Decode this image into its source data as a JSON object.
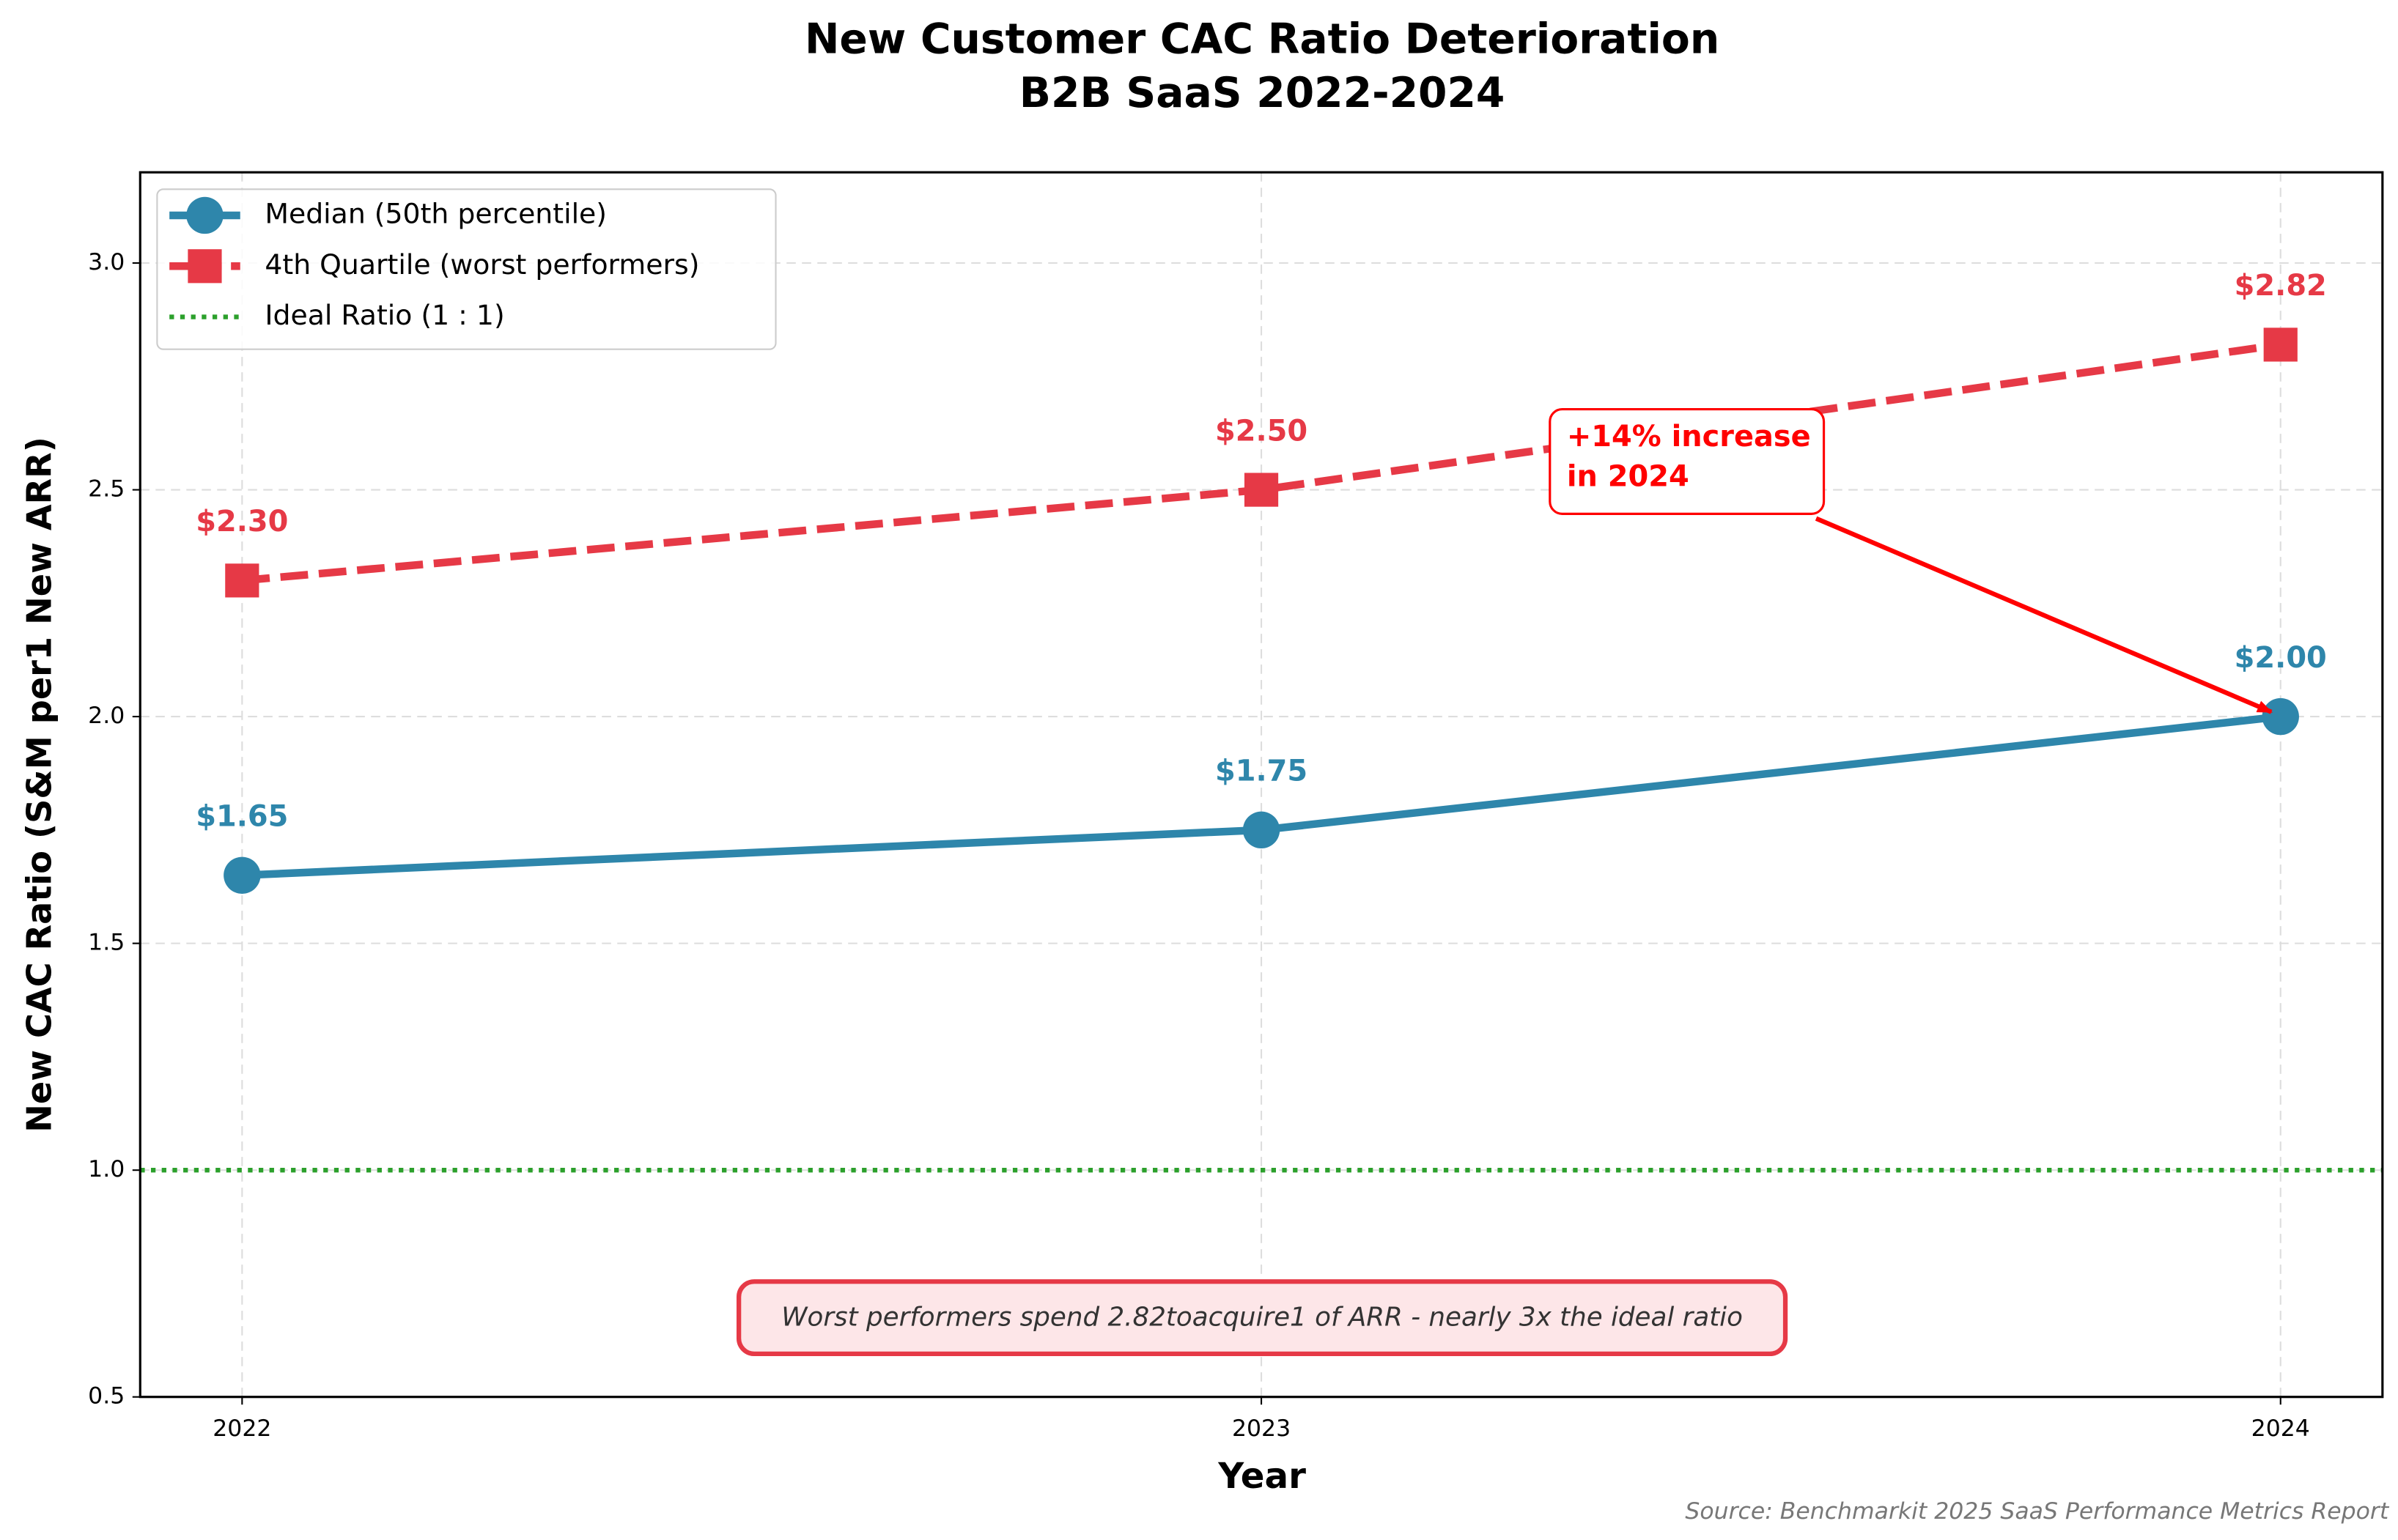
{
  "chart_data": {
    "type": "line",
    "title": [
      "New Customer CAC Ratio Deterioration",
      "B2B SaaS 2022-2024"
    ],
    "xlabel": "Year",
    "ylabel": "New CAC Ratio (S&M per1 New ARR)",
    "x": [
      2022,
      2023,
      2024
    ],
    "xlim": [
      2021.9,
      2024.1
    ],
    "xticks": [
      2022,
      2023,
      2024
    ],
    "ylim": [
      0.5,
      3.2
    ],
    "yticks": [
      0.5,
      1.0,
      1.5,
      2.0,
      2.5,
      3.0
    ],
    "ytick_labels": [
      "0.5",
      "1.0",
      "1.5",
      "2.0",
      "2.5",
      "3.0"
    ],
    "grid": true,
    "legend": "upper left",
    "series": [
      {
        "name": "Median (50th percentile)",
        "color": "#2e86ab",
        "marker": "circle",
        "dash": false,
        "values": [
          1.65,
          1.75,
          2.0
        ],
        "value_labels": [
          "$1.65",
          "$1.75",
          "$2.00"
        ]
      },
      {
        "name": "4th Quartile (worst performers)",
        "color": "#e63946",
        "marker": "square",
        "dash": true,
        "values": [
          2.3,
          2.5,
          2.82
        ],
        "value_labels": [
          "$2.30",
          "$2.50",
          "$2.82"
        ]
      }
    ],
    "reference_lines": [
      {
        "name": "Ideal Ratio (1 : 1)",
        "value": 1,
        "color": "#2ca02c"
      }
    ],
    "annotation": {
      "text": [
        "+14% increase",
        "in 2024"
      ],
      "color": "#ff0000"
    },
    "note": "Worst performers spend 2.82toacquire1 of ARR - nearly 3x the ideal ratio",
    "source": "Source: Benchmarkit 2025 SaaS Performance Metrics Report"
  }
}
